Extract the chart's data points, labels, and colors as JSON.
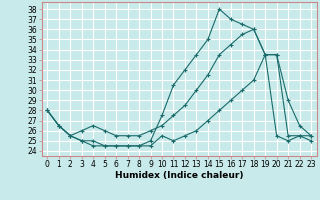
{
  "title": "",
  "xlabel": "Humidex (Indice chaleur)",
  "bg_color": "#c8eaea",
  "line_color": "#1a6b6b",
  "grid_color": "#ffffff",
  "xlim": [
    -0.5,
    23.5
  ],
  "ylim": [
    23.5,
    38.7
  ],
  "yticks": [
    24,
    25,
    26,
    27,
    28,
    29,
    30,
    31,
    32,
    33,
    34,
    35,
    36,
    37,
    38
  ],
  "xticks": [
    0,
    1,
    2,
    3,
    4,
    5,
    6,
    7,
    8,
    9,
    10,
    11,
    12,
    13,
    14,
    15,
    16,
    17,
    18,
    19,
    20,
    21,
    22,
    23
  ],
  "line1_x": [
    0,
    1,
    2,
    3,
    4,
    5,
    6,
    7,
    8,
    9,
    10,
    11,
    12,
    13,
    14,
    15,
    16,
    17,
    18,
    19,
    20,
    21,
    22,
    23
  ],
  "line1_y": [
    28.0,
    26.5,
    25.5,
    25.0,
    25.0,
    24.5,
    24.5,
    24.5,
    24.5,
    25.0,
    27.5,
    30.5,
    32.0,
    33.5,
    35.0,
    38.0,
    37.0,
    36.5,
    36.0,
    33.5,
    33.5,
    29.0,
    26.5,
    25.5
  ],
  "line2_x": [
    0,
    1,
    2,
    3,
    4,
    5,
    6,
    7,
    8,
    9,
    10,
    11,
    12,
    13,
    14,
    15,
    16,
    17,
    18,
    19,
    20,
    21,
    22,
    23
  ],
  "line2_y": [
    28.0,
    26.5,
    25.5,
    26.0,
    26.5,
    26.0,
    25.5,
    25.5,
    25.5,
    26.0,
    26.5,
    27.5,
    28.5,
    30.0,
    31.5,
    33.5,
    34.5,
    35.5,
    36.0,
    33.5,
    25.5,
    25.0,
    25.5,
    25.5
  ],
  "line3_x": [
    0,
    1,
    2,
    3,
    4,
    5,
    6,
    7,
    8,
    9,
    10,
    11,
    12,
    13,
    14,
    15,
    16,
    17,
    18,
    19,
    20,
    21,
    22,
    23
  ],
  "line3_y": [
    28.0,
    26.5,
    25.5,
    25.0,
    24.5,
    24.5,
    24.5,
    24.5,
    24.5,
    24.5,
    25.5,
    25.0,
    25.5,
    26.0,
    27.0,
    28.0,
    29.0,
    30.0,
    31.0,
    33.5,
    33.5,
    25.5,
    25.5,
    25.0
  ],
  "tick_fontsize": 5.5,
  "xlabel_fontsize": 6.5
}
